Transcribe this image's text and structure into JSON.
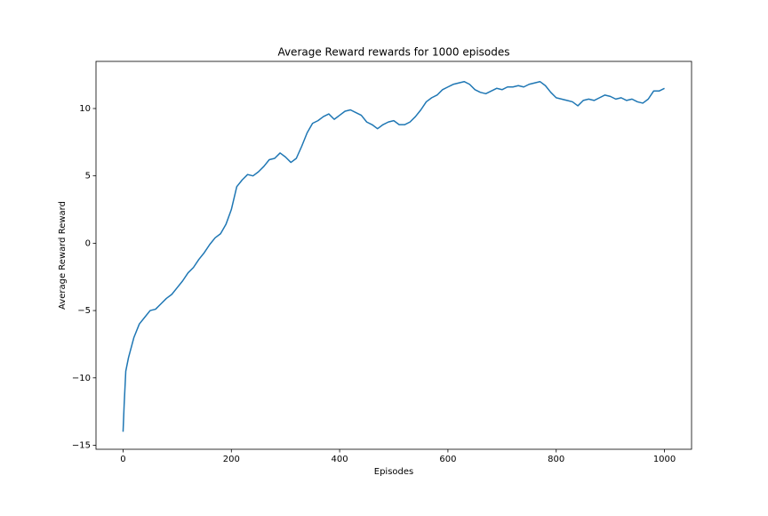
{
  "chart_data": {
    "type": "line",
    "title": "Average Reward rewards for 1000 episodes",
    "xlabel": "Episodes",
    "ylabel": "Average Reward Reward",
    "x": [
      0,
      2,
      5,
      10,
      20,
      30,
      40,
      50,
      60,
      70,
      80,
      90,
      100,
      110,
      120,
      130,
      140,
      150,
      160,
      170,
      180,
      190,
      200,
      210,
      220,
      230,
      240,
      250,
      260,
      270,
      280,
      290,
      300,
      310,
      320,
      330,
      340,
      350,
      360,
      370,
      380,
      390,
      400,
      410,
      420,
      430,
      440,
      450,
      460,
      470,
      480,
      490,
      500,
      510,
      520,
      530,
      540,
      550,
      560,
      570,
      580,
      590,
      600,
      610,
      620,
      630,
      640,
      650,
      660,
      670,
      680,
      690,
      700,
      710,
      720,
      730,
      740,
      750,
      760,
      770,
      780,
      790,
      800,
      810,
      820,
      830,
      840,
      850,
      860,
      870,
      880,
      890,
      900,
      910,
      920,
      930,
      940,
      950,
      960,
      970,
      980,
      990,
      1000
    ],
    "series": [
      {
        "name": "Average Reward",
        "color": "#1f77b4",
        "values": [
          -14,
          -12,
          -9.5,
          -8.5,
          -7,
          -6,
          -5.5,
          -5,
          -4.9,
          -4.5,
          -4.1,
          -3.8,
          -3.3,
          -2.8,
          -2.2,
          -1.8,
          -1.2,
          -0.7,
          -0.1,
          0.4,
          0.7,
          1.4,
          2.5,
          4.2,
          4.7,
          5.1,
          5.0,
          5.3,
          5.7,
          6.2,
          6.3,
          6.7,
          6.4,
          6.0,
          6.3,
          7.2,
          8.2,
          8.9,
          9.1,
          9.4,
          9.6,
          9.2,
          9.5,
          9.8,
          9.9,
          9.7,
          9.5,
          9.0,
          8.8,
          8.5,
          8.8,
          9.0,
          9.1,
          8.8,
          8.8,
          9.0,
          9.4,
          9.9,
          10.5,
          10.8,
          11.0,
          11.4,
          11.6,
          11.8,
          11.9,
          12.0,
          11.8,
          11.4,
          11.2,
          11.1,
          11.3,
          11.5,
          11.4,
          11.6,
          11.6,
          11.7,
          11.6,
          11.8,
          11.9,
          12.0,
          11.7,
          11.2,
          10.8,
          10.7,
          10.6,
          10.5,
          10.2,
          10.6,
          10.7,
          10.6,
          10.8,
          11.0,
          10.9,
          10.7,
          10.8,
          10.6,
          10.7,
          10.5,
          10.4,
          10.7,
          11.3,
          11.3,
          11.5
        ]
      }
    ],
    "xlim": [
      -50,
      1050
    ],
    "xticks": [
      0,
      200,
      400,
      600,
      800,
      1000
    ],
    "ylim": [
      -15.3,
      13.5
    ],
    "yticks": [
      {
        "value": -15,
        "label": "−15"
      },
      {
        "value": -10,
        "label": "−10"
      },
      {
        "value": -5,
        "label": "−5"
      },
      0,
      5,
      10
    ],
    "grid": false
  }
}
